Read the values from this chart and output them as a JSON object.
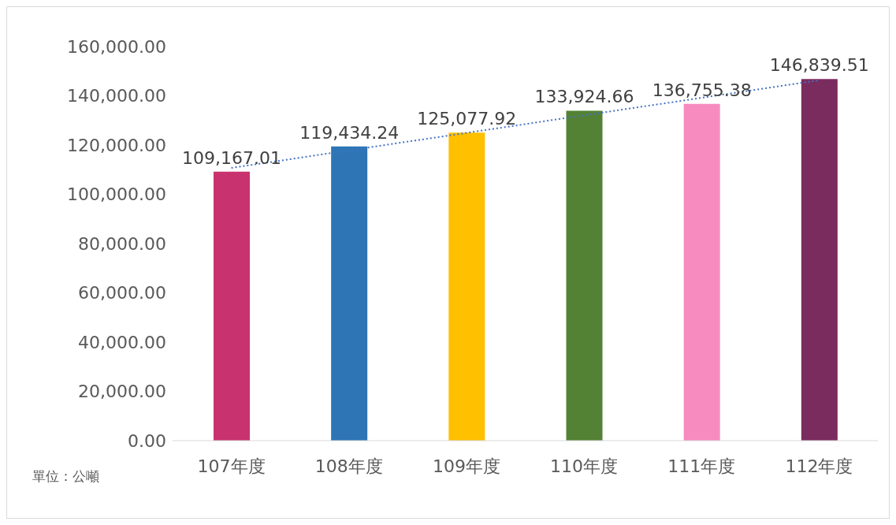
{
  "chart_data": {
    "type": "bar",
    "categories": [
      "107年度",
      "108年度",
      "109年度",
      "110年度",
      "111年度",
      "112年度"
    ],
    "values": [
      109167.01,
      119434.24,
      125077.92,
      133924.66,
      136755.38,
      146839.51
    ],
    "colors": [
      "#c8326e",
      "#2e75b6",
      "#ffc000",
      "#548235",
      "#f78bbf",
      "#7b2c5e"
    ],
    "value_labels": [
      "109,167.01",
      "119,434.24",
      "125,077.92",
      "133,924.66",
      "136,755.38",
      "146,839.51"
    ],
    "series": [
      {
        "type": "line",
        "x": [
          "107年度",
          "112年度"
        ],
        "values": [
          110700,
          146300
        ],
        "color": "#4472c4",
        "line_style": "dotted"
      }
    ],
    "ylim": [
      0,
      160000
    ],
    "yticks": [
      {
        "value": 0,
        "label": "0.00"
      },
      {
        "value": 20000,
        "label": "20,000.00"
      },
      {
        "value": 40000,
        "label": "40,000.00"
      },
      {
        "value": 60000,
        "label": "60,000.00"
      },
      {
        "value": 80000,
        "label": "80,000.00"
      },
      {
        "value": 100000,
        "label": "100,000.00"
      },
      {
        "value": 120000,
        "label": "120,000.00"
      },
      {
        "value": 140000,
        "label": "140,000.00"
      },
      {
        "value": 160000,
        "label": "160,000.00"
      }
    ],
    "grid": false,
    "legend": false,
    "annotations": [
      "單位：公噸"
    ]
  }
}
